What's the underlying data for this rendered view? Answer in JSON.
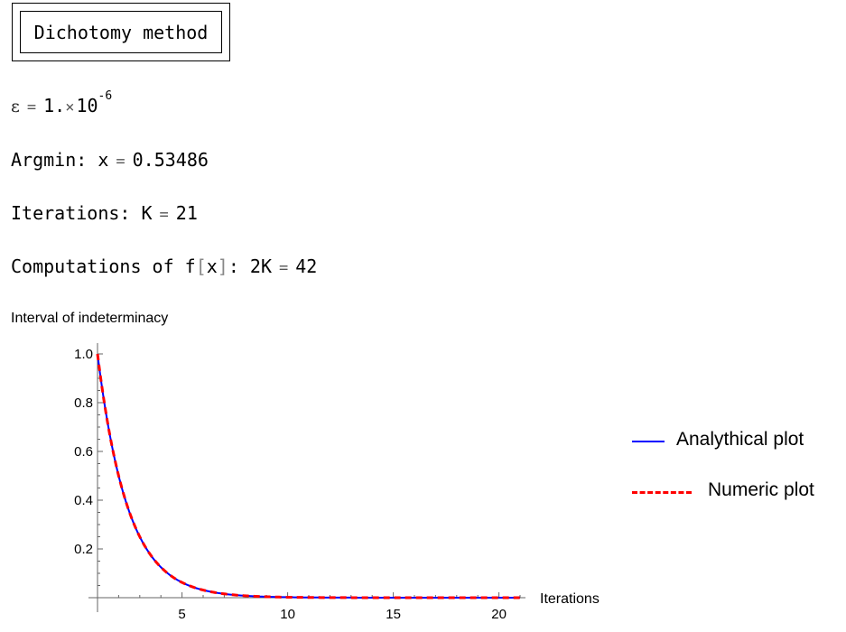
{
  "title": "Dichotomy method",
  "lines": {
    "epsilon": {
      "symbol": "ε",
      "equals": "=",
      "mantissa": "1.",
      "times": "×",
      "base": "10",
      "exponent": "-6"
    },
    "argmin": {
      "label": "Argmin: x",
      "equals": "=",
      "value": "0.53486"
    },
    "iterations": {
      "label": "Iterations: K",
      "equals": "=",
      "value": "21"
    },
    "computations": {
      "label_pre": "Computations of f",
      "open": "[",
      "var": "x",
      "close": "]",
      "label_post": ": 2K",
      "equals": "=",
      "value": "42"
    }
  },
  "chart_data": {
    "type": "line",
    "title": "Interval of indeterminacy",
    "xlabel": "Iterations",
    "ylabel": "",
    "xlim": [
      1,
      21
    ],
    "ylim": [
      0,
      1.0
    ],
    "x_ticks": [
      "5",
      "10",
      "15",
      "20"
    ],
    "y_ticks": [
      "0.2",
      "0.4",
      "0.6",
      "0.8",
      "1.0"
    ],
    "series": [
      {
        "name": "Analythical plot",
        "color": "#0000ff",
        "style": "solid",
        "x": [
          1,
          2,
          3,
          4,
          5,
          6,
          7,
          8,
          9,
          10,
          11,
          12,
          13,
          14,
          15,
          16,
          17,
          18,
          19,
          20,
          21
        ],
        "values": [
          1.0,
          0.5,
          0.25,
          0.125,
          0.0625,
          0.03125,
          0.015625,
          0.0078125,
          0.00390625,
          0.001953125,
          0.0009765625,
          0.00048828125,
          0.000244140625,
          0.0001220703125,
          6.103515625e-05,
          3.0517578125e-05,
          1.52587890625e-05,
          7.62939453125e-06,
          3.814697265625e-06,
          1.9073486328125e-06,
          9.5367431640625e-07
        ]
      },
      {
        "name": "Numeric plot",
        "color": "#ff0000",
        "style": "dashed",
        "x": [
          1,
          2,
          3,
          4,
          5,
          6,
          7,
          8,
          9,
          10,
          11,
          12,
          13,
          14,
          15,
          16,
          17,
          18,
          19,
          20,
          21
        ],
        "values": [
          1.0,
          0.5,
          0.25,
          0.125,
          0.0625,
          0.03125,
          0.015625,
          0.0078125,
          0.00390625,
          0.001953125,
          0.0009765625,
          0.00048828125,
          0.000244140625,
          0.0001220703125,
          6.103515625e-05,
          3.0517578125e-05,
          1.52587890625e-05,
          7.62939453125e-06,
          3.814697265625e-06,
          1.9073486328125e-06,
          9.5367431640625e-07
        ]
      }
    ],
    "legend_position": "right"
  }
}
